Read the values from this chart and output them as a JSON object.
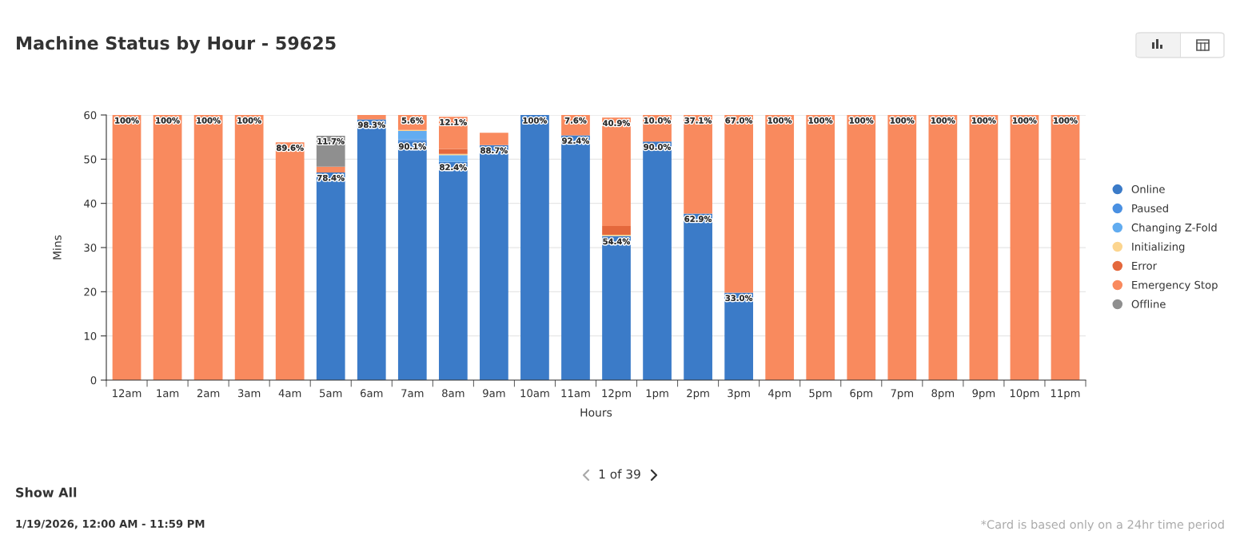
{
  "chart_data": {
    "type": "bar",
    "title": "Machine Status by Hour - 59625",
    "xlabel": "Hours",
    "ylabel": "Mins",
    "categories": [
      "12am",
      "1am",
      "2am",
      "3am",
      "4am",
      "5am",
      "6am",
      "7am",
      "8am",
      "9am",
      "10am",
      "11am",
      "12pm",
      "1pm",
      "2pm",
      "3pm",
      "4pm",
      "5pm",
      "6pm",
      "7pm",
      "8pm",
      "9pm",
      "10pm",
      "11pm"
    ],
    "stacked": true,
    "ylim": [
      0,
      60
    ],
    "yticks": [
      0,
      10,
      20,
      30,
      40,
      50,
      60
    ],
    "grid": "y",
    "legend": "right",
    "series": [
      {
        "name": "Online",
        "color": "#3b7bc8",
        "values": [
          null,
          null,
          null,
          null,
          null,
          47.0,
          59.0,
          54.1,
          49.4,
          53.2,
          60,
          55.4,
          32.6,
          54.0,
          37.7,
          19.8,
          null,
          null,
          null,
          null,
          null,
          null,
          null,
          null
        ]
      },
      {
        "name": "Paused",
        "color": "#4a90e2",
        "values": [
          null,
          null,
          null,
          null,
          null,
          null,
          null,
          0.4,
          null,
          null,
          null,
          null,
          null,
          null,
          null,
          null,
          null,
          null,
          null,
          null,
          null,
          null,
          null,
          null
        ]
      },
      {
        "name": "Changing Z-Fold",
        "color": "#62acf0",
        "values": [
          null,
          null,
          null,
          null,
          null,
          null,
          null,
          1.9,
          1.5,
          null,
          null,
          null,
          null,
          null,
          null,
          null,
          null,
          null,
          null,
          null,
          null,
          null,
          null,
          null
        ]
      },
      {
        "name": "Initializing",
        "color": "#fcd58f",
        "values": [
          null,
          null,
          null,
          null,
          null,
          null,
          null,
          0.2,
          0.3,
          null,
          null,
          null,
          0.3,
          null,
          null,
          null,
          null,
          null,
          null,
          null,
          null,
          null,
          null,
          null
        ]
      },
      {
        "name": "Error",
        "color": "#e4683c",
        "values": [
          null,
          null,
          null,
          null,
          null,
          null,
          null,
          null,
          1.1,
          null,
          null,
          null,
          2.0,
          null,
          null,
          null,
          null,
          null,
          null,
          null,
          null,
          null,
          null,
          null
        ]
      },
      {
        "name": "Emergency Stop",
        "color": "#f98a5e",
        "values": [
          60,
          60,
          60,
          60,
          53.8,
          1.3,
          1.0,
          3.4,
          7.3,
          2.8,
          null,
          4.6,
          24.5,
          6.0,
          22.3,
          40.2,
          60,
          60,
          60,
          60,
          60,
          60,
          60,
          60
        ]
      },
      {
        "name": "Offline",
        "color": "#8f8f8f",
        "values": [
          null,
          null,
          null,
          null,
          null,
          7.0,
          null,
          null,
          null,
          null,
          null,
          null,
          null,
          null,
          null,
          null,
          null,
          null,
          null,
          null,
          null,
          null,
          null,
          null
        ]
      }
    ],
    "annotations": [
      {
        "text": "100%",
        "x": "12am",
        "y": 60
      },
      {
        "text": "100%",
        "x": "1am",
        "y": 60
      },
      {
        "text": "100%",
        "x": "2am",
        "y": 60
      },
      {
        "text": "100%",
        "x": "3am",
        "y": 60
      },
      {
        "text": "89.6%",
        "x": "4am",
        "y": 53.8
      },
      {
        "text": "11.7%",
        "x": "5am",
        "y": 55.3
      },
      {
        "text": "78.4%",
        "x": "5am",
        "y": 47.0
      },
      {
        "text": "98.3%",
        "x": "6am",
        "y": 59.0
      },
      {
        "text": "5.6%",
        "x": "7am",
        "y": 60.0
      },
      {
        "text": "90.1%",
        "x": "7am",
        "y": 54.1
      },
      {
        "text": "12.1%",
        "x": "8am",
        "y": 59.6
      },
      {
        "text": "82.4%",
        "x": "8am",
        "y": 49.4
      },
      {
        "text": "88.7%",
        "x": "9am",
        "y": 53.2
      },
      {
        "text": "100%",
        "x": "10am",
        "y": 60
      },
      {
        "text": "7.6%",
        "x": "11am",
        "y": 60.0
      },
      {
        "text": "92.4%",
        "x": "11am",
        "y": 55.4
      },
      {
        "text": "40.9%",
        "x": "12pm",
        "y": 59.4
      },
      {
        "text": "54.4%",
        "x": "12pm",
        "y": 32.6
      },
      {
        "text": "10.0%",
        "x": "1pm",
        "y": 60.0
      },
      {
        "text": "90.0%",
        "x": "1pm",
        "y": 54.0
      },
      {
        "text": "37.1%",
        "x": "2pm",
        "y": 60.0
      },
      {
        "text": "62.9%",
        "x": "2pm",
        "y": 37.7
      },
      {
        "text": "67.0%",
        "x": "3pm",
        "y": 60.0
      },
      {
        "text": "33.0%",
        "x": "3pm",
        "y": 19.8
      },
      {
        "text": "100%",
        "x": "4pm",
        "y": 60
      },
      {
        "text": "100%",
        "x": "5pm",
        "y": 60
      },
      {
        "text": "100%",
        "x": "6pm",
        "y": 60
      },
      {
        "text": "100%",
        "x": "7pm",
        "y": 60
      },
      {
        "text": "100%",
        "x": "8pm",
        "y": 60
      },
      {
        "text": "100%",
        "x": "9pm",
        "y": 60
      },
      {
        "text": "100%",
        "x": "10pm",
        "y": 60
      },
      {
        "text": "100%",
        "x": "11pm",
        "y": 60
      },
      "1 of 39",
      "Show All",
      "1/19/2026, 12:00 AM - 11:59 PM",
      "*Card is based only on a 24hr time period"
    ]
  }
}
